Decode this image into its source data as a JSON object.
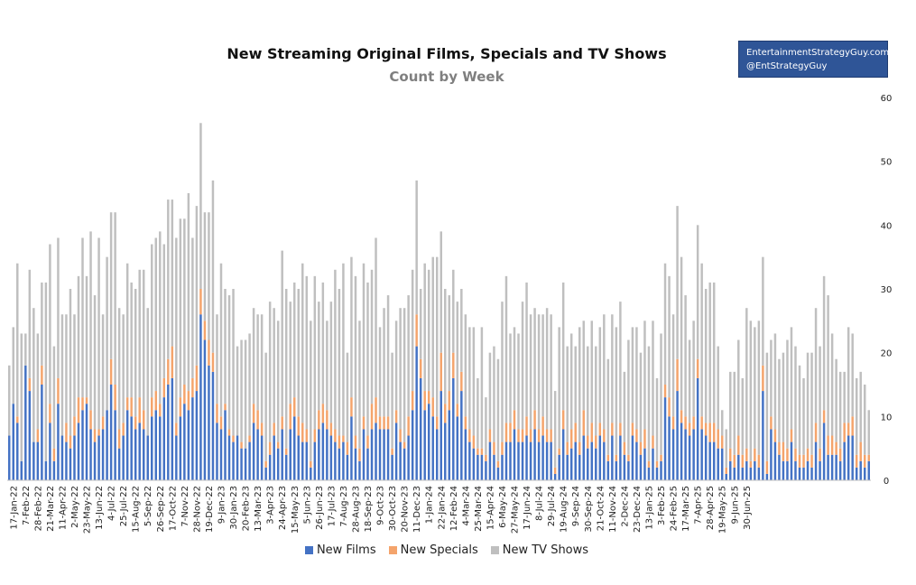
{
  "header": {
    "title": "New Streaming Original Films, Specials and TV Shows",
    "subtitle": "Count by Week"
  },
  "brand": {
    "line1": "EntertainmentStrategyGuy.com",
    "line2": "@EntStrategyGuy",
    "bg_color": "#2f5597"
  },
  "legend": {
    "films_label": "New Films",
    "specials_label": "New Specials",
    "tv_label": "New TV Shows"
  },
  "chart_data": {
    "type": "bar",
    "stacked": true,
    "title": "New Streaming Original Films, Specials and TV Shows",
    "subtitle": "Count by Week",
    "ylim": [
      0,
      60
    ],
    "y_ticks": [
      0,
      10,
      20,
      30,
      40,
      50,
      60
    ],
    "y_axis_side": "right",
    "grid": false,
    "legend_position": "bottom",
    "x_tick_labels": [
      "17-Jan-22",
      "7-Feb-22",
      "28-Feb-22",
      "21-Mar-22",
      "11-Apr-22",
      "2-May-22",
      "23-May-22",
      "13-Jun-22",
      "4-Jul-22",
      "25-Jul-22",
      "15-Aug-22",
      "5-Sep-22",
      "26-Sep-22",
      "17-Oct-22",
      "7-Nov-22",
      "28-Nov-22",
      "19-Dec-22",
      "9-Jan-23",
      "30-Jan-23",
      "20-Feb-23",
      "13-Mar-23",
      "3-Apr-23",
      "24-Apr-23",
      "15-May-23",
      "5-Jun-23",
      "26-Jun-23",
      "17-Jul-23",
      "7-Aug-23",
      "28-Aug-23",
      "18-Sep-23",
      "9-Oct-23",
      "30-Oct-23",
      "20-Nov-23",
      "11-Dec-23",
      "1-Jan-24",
      "22-Jan-24",
      "12-Feb-24",
      "4-Mar-24",
      "25-Mar-24",
      "15-Apr-24",
      "6-May-24",
      "27-May-24",
      "17-Jun-24",
      "8-Jul-24",
      "29-Jul-24",
      "19-Aug-24",
      "9-Sep-24",
      "30-Sep-24",
      "21-Oct-24",
      "11-Nov-24",
      "2-Dec-24",
      "23-Dec-24",
      "13-Jan-25",
      "3-Feb-25",
      "24-Feb-25",
      "17-Mar-25",
      "7-Apr-25",
      "28-Apr-25",
      "19-May-25",
      "9-Jun-25",
      "30-Jun-25"
    ],
    "tick_interval_weeks": 3,
    "first_week": "10-Jan-22",
    "series": [
      {
        "name": "New Films",
        "color": "#4472c4",
        "values": [
          7,
          12,
          9,
          3,
          18,
          14,
          6,
          6,
          15,
          3,
          9,
          3,
          12,
          7,
          6,
          5,
          7,
          9,
          11,
          12,
          8,
          6,
          7,
          8,
          11,
          15,
          11,
          5,
          7,
          11,
          10,
          8,
          9,
          8,
          7,
          10,
          11,
          10,
          13,
          15,
          16,
          7,
          10,
          12,
          11,
          13,
          14,
          26,
          22,
          18,
          17,
          9,
          8,
          11,
          7,
          6,
          7,
          5,
          5,
          6,
          9,
          8,
          7,
          2,
          4,
          7,
          5,
          8,
          4,
          8,
          10,
          7,
          6,
          6,
          2,
          6,
          8,
          9,
          8,
          7,
          6,
          5,
          6,
          4,
          10,
          5,
          3,
          8,
          5,
          8,
          9,
          8,
          8,
          8,
          4,
          9,
          6,
          5,
          7,
          11,
          21,
          16,
          11,
          12,
          10,
          8,
          14,
          9,
          11,
          16,
          10,
          14,
          8,
          6,
          5,
          4,
          4,
          3,
          6,
          4,
          2,
          4,
          6,
          6,
          8,
          6,
          6,
          7,
          6,
          8,
          6,
          7,
          6,
          6,
          1,
          4,
          8,
          4,
          5,
          6,
          4,
          7,
          5,
          6,
          5,
          7,
          6,
          3,
          7,
          3,
          7,
          4,
          3,
          7,
          6,
          4,
          5,
          2,
          5,
          2,
          3,
          13,
          10,
          8,
          14,
          9,
          8,
          7,
          8,
          16,
          8,
          7,
          6,
          6,
          5,
          5,
          1,
          3,
          2,
          4,
          2,
          3,
          2,
          3,
          2,
          14,
          1,
          8,
          6,
          4,
          3,
          3,
          6,
          3,
          2,
          2,
          3,
          2,
          6,
          3,
          9,
          4,
          4,
          4,
          3,
          6,
          7,
          7,
          2,
          3,
          2,
          3
        ]
      },
      {
        "name": "New Specials",
        "color": "#f4a46c",
        "values": [
          0,
          0,
          1,
          0,
          0,
          2,
          0,
          2,
          3,
          0,
          3,
          2,
          4,
          0,
          3,
          2,
          3,
          4,
          2,
          1,
          3,
          2,
          1,
          2,
          0,
          4,
          4,
          3,
          2,
          2,
          3,
          2,
          4,
          3,
          0,
          3,
          3,
          2,
          3,
          4,
          5,
          2,
          3,
          3,
          3,
          3,
          4,
          4,
          3,
          4,
          3,
          3,
          2,
          1,
          1,
          1,
          0,
          1,
          0,
          1,
          3,
          3,
          2,
          1,
          2,
          2,
          1,
          2,
          1,
          4,
          3,
          3,
          3,
          2,
          1,
          2,
          3,
          3,
          3,
          2,
          2,
          2,
          1,
          2,
          3,
          2,
          2,
          2,
          2,
          4,
          4,
          2,
          2,
          2,
          1,
          2,
          2,
          1,
          3,
          3,
          5,
          3,
          3,
          2,
          3,
          2,
          6,
          3,
          3,
          4,
          2,
          3,
          2,
          2,
          2,
          1,
          1,
          1,
          2,
          2,
          1,
          2,
          3,
          3,
          3,
          2,
          2,
          3,
          2,
          3,
          2,
          3,
          2,
          2,
          1,
          1,
          3,
          2,
          3,
          3,
          2,
          4,
          2,
          3,
          2,
          2,
          2,
          1,
          2,
          1,
          2,
          2,
          1,
          2,
          2,
          2,
          3,
          1,
          2,
          1,
          1,
          2,
          3,
          2,
          5,
          2,
          2,
          2,
          2,
          3,
          2,
          2,
          3,
          3,
          3,
          2,
          1,
          2,
          2,
          3,
          2,
          2,
          1,
          2,
          2,
          4,
          2,
          2,
          2,
          2,
          3,
          2,
          2,
          2,
          2,
          2,
          2,
          2,
          3,
          2,
          2,
          3,
          3,
          2,
          2,
          3,
          2,
          3,
          2,
          3,
          2,
          1
        ]
      },
      {
        "name": "New TV Shows",
        "color": "#bfbfbf",
        "values": [
          11,
          12,
          24,
          20,
          5,
          17,
          21,
          15,
          13,
          28,
          25,
          16,
          22,
          19,
          17,
          23,
          16,
          19,
          25,
          19,
          28,
          21,
          30,
          16,
          24,
          23,
          27,
          19,
          17,
          21,
          18,
          20,
          20,
          22,
          20,
          24,
          24,
          27,
          21,
          25,
          23,
          29,
          28,
          26,
          31,
          22,
          25,
          26,
          17,
          20,
          27,
          14,
          24,
          18,
          21,
          23,
          14,
          16,
          17,
          16,
          15,
          15,
          17,
          17,
          22,
          18,
          19,
          26,
          25,
          16,
          18,
          20,
          25,
          24,
          22,
          24,
          17,
          19,
          14,
          19,
          25,
          23,
          27,
          14,
          22,
          25,
          20,
          24,
          24,
          21,
          25,
          14,
          17,
          19,
          15,
          14,
          19,
          21,
          19,
          19,
          21,
          11,
          20,
          19,
          22,
          25,
          19,
          18,
          15,
          13,
          16,
          13,
          16,
          16,
          17,
          11,
          19,
          9,
          12,
          15,
          16,
          22,
          23,
          14,
          13,
          15,
          20,
          21,
          18,
          16,
          18,
          16,
          19,
          18,
          12,
          19,
          20,
          15,
          15,
          12,
          18,
          14,
          14,
          16,
          14,
          15,
          18,
          15,
          17,
          20,
          19,
          11,
          18,
          15,
          16,
          14,
          17,
          18,
          18,
          13,
          19,
          19,
          19,
          16,
          24,
          24,
          19,
          13,
          15,
          21,
          24,
          21,
          22,
          22,
          13,
          4,
          6,
          12,
          13,
          15,
          12,
          22,
          22,
          19,
          21,
          17,
          17,
          12,
          15,
          13,
          14,
          17,
          16,
          16,
          14,
          12,
          15,
          16,
          18,
          16,
          21,
          22,
          16,
          13,
          12,
          8,
          15,
          13,
          12,
          11,
          11,
          7
        ]
      }
    ]
  }
}
